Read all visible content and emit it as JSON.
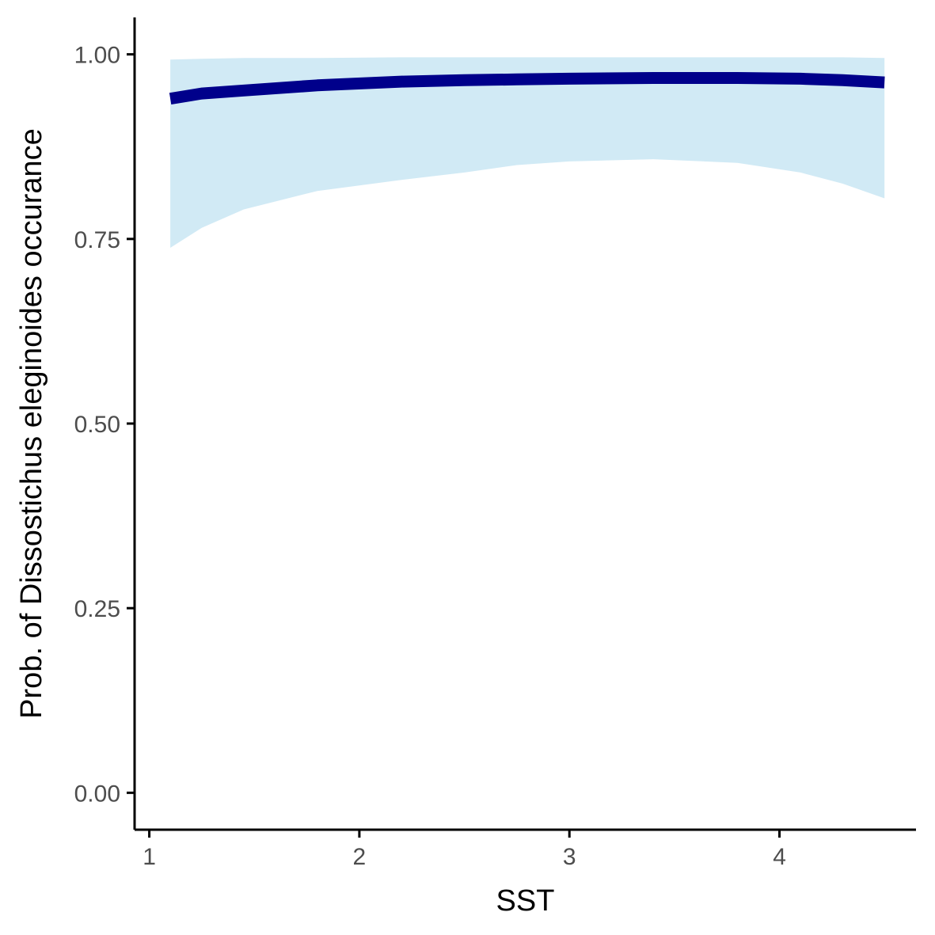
{
  "chart_data": {
    "type": "line",
    "title": "",
    "xlabel": "SST",
    "ylabel": "Prob. of  Dissostichus eleginoides  occurance",
    "xlim": [
      0.93,
      4.65
    ],
    "ylim": [
      -0.05,
      1.05
    ],
    "x_ticks": [
      1,
      2,
      3,
      4
    ],
    "y_ticks": [
      0.0,
      0.25,
      0.5,
      0.75,
      1.0
    ],
    "x_tick_labels": [
      "1",
      "2",
      "3",
      "4"
    ],
    "y_tick_labels": [
      "0.00",
      "0.25",
      "0.50",
      "0.75",
      "1.00"
    ],
    "grid": false,
    "legend": "none",
    "colors": {
      "line": "#00008b",
      "ribbon": "#d1eaf5",
      "axis": "#000000",
      "tick_text": "#4d4d4d"
    },
    "series": [
      {
        "x": [
          1.1,
          1.25,
          1.45,
          1.8,
          2.2,
          2.5,
          2.75,
          3.0,
          3.4,
          3.8,
          4.1,
          4.3,
          4.5
        ],
        "y": [
          0.94,
          0.947,
          0.951,
          0.958,
          0.963,
          0.965,
          0.966,
          0.967,
          0.968,
          0.968,
          0.967,
          0.965,
          0.962
        ],
        "lower": [
          0.738,
          0.765,
          0.79,
          0.815,
          0.83,
          0.84,
          0.85,
          0.855,
          0.858,
          0.853,
          0.84,
          0.825,
          0.805
        ],
        "upper": [
          0.993,
          0.994,
          0.995,
          0.995,
          0.996,
          0.996,
          0.996,
          0.996,
          0.996,
          0.996,
          0.996,
          0.996,
          0.995
        ]
      }
    ]
  }
}
